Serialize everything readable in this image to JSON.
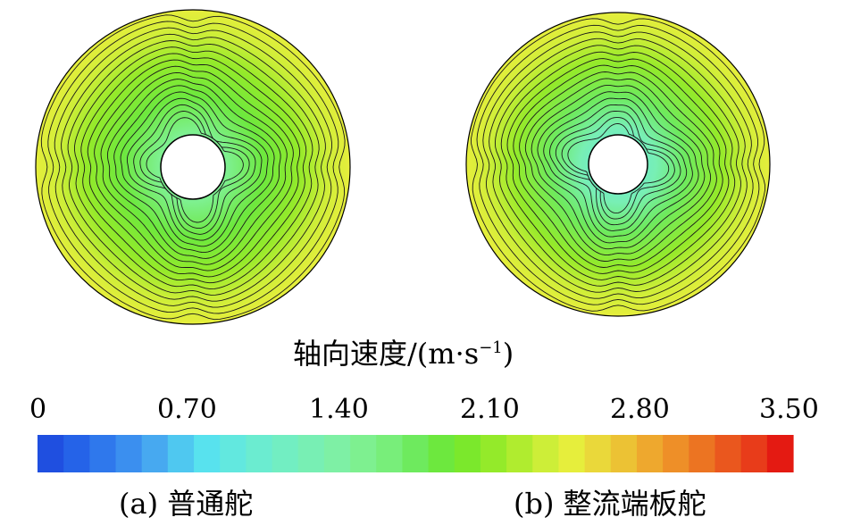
{
  "colorbar": {
    "title": "轴向速度/(m·s",
    "title_sup": "−1",
    "title_close": ")",
    "ticks": [
      "0",
      "0.70",
      "1.40",
      "2.10",
      "2.80",
      "3.50"
    ],
    "min": 0,
    "max": 3.5,
    "colors": [
      "#1f4fe0",
      "#2563e8",
      "#2f78ec",
      "#3b8fef",
      "#47a9f0",
      "#4fc8f0",
      "#58e2ee",
      "#62e8df",
      "#6becd0",
      "#72eec2",
      "#78efb4",
      "#7ef0a5",
      "#7ef090",
      "#78ee7a",
      "#6eea5e",
      "#6de83e",
      "#7be82c",
      "#94ea2a",
      "#b0ec2f",
      "#cdee38",
      "#e6ee3c",
      "#ead83a",
      "#ecc234",
      "#eea82e",
      "#ee8f28",
      "#ec7422",
      "#ea571e",
      "#e83c1a",
      "#e41a12"
    ]
  },
  "panels": [
    {
      "caption": "(a) 普通舵",
      "contour_fill_center": "#62e8df",
      "contour_fill_outer": "#e6ee3c"
    },
    {
      "caption": "(b) 整流端板舵",
      "contour_fill_center": "#62e8df",
      "contour_fill_outer": "#e6ee3c"
    }
  ]
}
